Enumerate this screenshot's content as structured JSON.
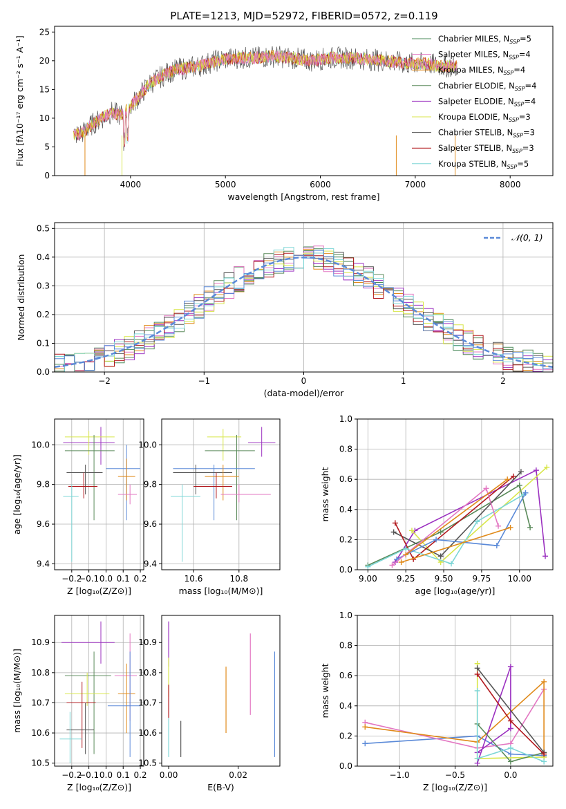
{
  "colors": {
    "Chabrier MILES": "#4a8a5a",
    "Salpeter MILES": "#e377c2",
    "Kroupa MILES": "#e08a1a",
    "Chabrier ELODIE": "#5a8a5a",
    "Salpeter ELODIE": "#9b30c0",
    "Kroupa ELODIE": "#d8e64a",
    "Chabrier STELIB": "#555555",
    "Salpeter STELIB": "#b2191e",
    "Kroupa STELIB": "#7dd6d6",
    "blue": "#5b8ad8",
    "normal": "#5b8ad8"
  },
  "chart_data": [
    {
      "type": "line",
      "title": "PLATE=1213, MJD=52972, FIBERID=0572, z=0.119",
      "xlabel": "wavelength [Angstrom, rest frame]",
      "ylabel": "Flux [fλ10⁻¹⁷ erg cm⁻² s⁻¹ A⁻¹]",
      "xlim": [
        3200,
        8450
      ],
      "ylim": [
        0,
        26
      ],
      "xticks": [
        4000,
        5000,
        6000,
        7000,
        8000
      ],
      "yticks": [
        0,
        5,
        10,
        15,
        20,
        25
      ],
      "legend_position": "right",
      "legend": [
        {
          "label": "Chabrier MILES, N",
          "sub": "SSP",
          "tail": "=5"
        },
        {
          "label": "Salpeter MILES, N",
          "sub": "SSP",
          "tail": "=4"
        },
        {
          "label": "Kroupa MILES, N",
          "sub": "SSP",
          "tail": "=4"
        },
        {
          "label": "Chabrier ELODIE, N",
          "sub": "SSP",
          "tail": "=4"
        },
        {
          "label": "Salpeter ELODIE, N",
          "sub": "SSP",
          "tail": "=4"
        },
        {
          "label": "Kroupa ELODIE, N",
          "sub": "SSP",
          "tail": "=3"
        },
        {
          "label": "Chabrier STELIB, N",
          "sub": "SSP",
          "tail": "=3"
        },
        {
          "label": "Salpeter STELIB, N",
          "sub": "SSP",
          "tail": "=3"
        },
        {
          "label": "Kroupa STELIB, N",
          "sub": "SSP",
          "tail": "=5"
        }
      ],
      "spectrum_continuum": [
        [
          3400,
          7
        ],
        [
          3500,
          7.5
        ],
        [
          3600,
          9
        ],
        [
          3700,
          10
        ],
        [
          3800,
          11
        ],
        [
          3900,
          10.5
        ],
        [
          4000,
          12
        ],
        [
          4100,
          14
        ],
        [
          4200,
          16
        ],
        [
          4300,
          17
        ],
        [
          4400,
          18
        ],
        [
          4500,
          18.5
        ],
        [
          4700,
          19
        ],
        [
          4900,
          20
        ],
        [
          5100,
          20.5
        ],
        [
          5300,
          20.5
        ],
        [
          5500,
          20.8
        ],
        [
          5700,
          20.5
        ],
        [
          5900,
          20
        ],
        [
          6100,
          20.5
        ],
        [
          6300,
          20.5
        ],
        [
          6500,
          20.2
        ],
        [
          6700,
          20
        ],
        [
          6900,
          19.5
        ],
        [
          7100,
          19.5
        ],
        [
          7300,
          19
        ],
        [
          7400,
          19
        ]
      ]
    },
    {
      "type": "histogram",
      "xlabel": "(data-model)/error",
      "ylabel": "Normed distribution",
      "xlim": [
        -2.5,
        2.5
      ],
      "ylim": [
        0,
        0.52
      ],
      "xticks": [
        -2,
        -1,
        0,
        1,
        2
      ],
      "yticks": [
        0.0,
        0.1,
        0.2,
        0.3,
        0.4,
        0.5
      ],
      "legend": "𝒩(0, 1)"
    },
    {
      "type": "scatter",
      "panel": "age-vs-Z",
      "xlabel": "Z [log₁₀(Z/Z⊙)]",
      "ylabel": "age [log₁₀(age/yr)]",
      "xlim": [
        -0.3,
        0.22
      ],
      "ylim": [
        9.37,
        10.13
      ],
      "xticks": [
        -0.2,
        -0.1,
        0.0,
        0.1,
        0.2
      ],
      "yticks": [
        9.4,
        9.6,
        9.8,
        10.0
      ],
      "points": [
        {
          "c": "Salpeter ELODIE",
          "x": -0.03,
          "y": 10.01,
          "xe": [
            -0.25,
            0.05
          ],
          "ye": [
            9.9,
            10.09
          ]
        },
        {
          "c": "Kroupa ELODIE",
          "x": -0.1,
          "y": 10.04,
          "xe": [
            -0.24,
            0.05
          ],
          "ye": [
            9.95,
            10.07
          ]
        },
        {
          "c": "Chabrier ELODIE",
          "x": -0.07,
          "y": 9.97,
          "xe": [
            -0.24,
            0.05
          ],
          "ye": [
            9.62,
            10.05
          ]
        },
        {
          "c": "Chabrier STELIB",
          "x": -0.12,
          "y": 9.86,
          "xe": [
            -0.23,
            -0.02
          ],
          "ye": [
            9.75,
            9.9
          ]
        },
        {
          "c": "Salpeter STELIB",
          "x": -0.13,
          "y": 9.79,
          "xe": [
            -0.22,
            -0.05
          ],
          "ye": [
            9.73,
            9.86
          ]
        },
        {
          "c": "Kroupa STELIB",
          "x": -0.2,
          "y": 9.74,
          "xe": [
            -0.25,
            -0.16
          ],
          "ye": [
            9.41,
            9.8
          ]
        },
        {
          "c": "blue",
          "x": 0.12,
          "y": 9.88,
          "xe": [
            0.0,
            0.2
          ],
          "ye": [
            9.62,
            10.0
          ]
        },
        {
          "c": "Kroupa MILES",
          "x": 0.12,
          "y": 9.84,
          "xe": [
            0.07,
            0.17
          ],
          "ye": [
            9.72,
            9.93
          ]
        },
        {
          "c": "Salpeter MILES",
          "x": 0.14,
          "y": 9.75,
          "xe": [
            0.07,
            0.18
          ],
          "ye": [
            9.7,
            9.8
          ]
        }
      ]
    },
    {
      "type": "scatter",
      "panel": "age-vs-mass",
      "xlabel": "mass [log₁₀(M/M⊙)]",
      "xlim": [
        10.46,
        10.98
      ],
      "ylim": [
        9.37,
        10.13
      ],
      "xticks": [
        10.6,
        10.8
      ],
      "yticks": [
        9.4,
        9.6,
        9.8,
        10.0
      ],
      "points": [
        {
          "c": "Salpeter ELODIE",
          "x": 10.9,
          "y": 10.01,
          "xe": [
            10.84,
            10.96
          ],
          "ye": [
            9.94,
            10.09
          ]
        },
        {
          "c": "Kroupa ELODIE",
          "x": 10.73,
          "y": 10.04,
          "xe": [
            10.66,
            10.81
          ],
          "ye": [
            9.92,
            10.08
          ]
        },
        {
          "c": "Chabrier ELODIE",
          "x": 10.79,
          "y": 9.97,
          "xe": [
            10.65,
            10.87
          ],
          "ye": [
            9.62,
            10.05
          ]
        },
        {
          "c": "blue",
          "x": 10.69,
          "y": 9.88,
          "xe": [
            10.51,
            10.87
          ],
          "ye": [
            9.62,
            9.9
          ]
        },
        {
          "c": "Chabrier STELIB",
          "x": 10.61,
          "y": 9.86,
          "xe": [
            10.51,
            10.77
          ],
          "ye": [
            9.75,
            9.9
          ]
        },
        {
          "c": "Kroupa MILES",
          "x": 10.73,
          "y": 9.84,
          "xe": [
            10.65,
            10.8
          ],
          "ye": [
            9.72,
            9.9
          ]
        },
        {
          "c": "Salpeter STELIB",
          "x": 10.7,
          "y": 9.79,
          "xe": [
            10.6,
            10.77
          ],
          "ye": [
            9.73,
            9.86
          ]
        },
        {
          "c": "Salpeter MILES",
          "x": 10.8,
          "y": 9.75,
          "xe": [
            10.72,
            10.94
          ],
          "ye": [
            9.71,
            9.8
          ]
        },
        {
          "c": "Kroupa STELIB",
          "x": 10.55,
          "y": 9.74,
          "xe": [
            10.5,
            10.63
          ],
          "ye": [
            9.41,
            9.8
          ]
        }
      ]
    },
    {
      "type": "line",
      "panel": "weight-vs-age",
      "xlabel": "age [log₁₀(age/yr)]",
      "ylabel": "mass weight",
      "xlim": [
        8.93,
        10.22
      ],
      "ylim": [
        0,
        1.0
      ],
      "xticks": [
        9.0,
        9.25,
        9.5,
        9.75,
        10.0
      ],
      "yticks": [
        0.0,
        0.2,
        0.4,
        0.6,
        0.8,
        1.0
      ],
      "series": [
        {
          "c": "Salpeter ELODIE",
          "x": [
            9.18,
            9.31,
            10.11,
            10.17
          ],
          "y": [
            0.05,
            0.26,
            0.66,
            0.09
          ]
        },
        {
          "c": "Kroupa ELODIE",
          "x": [
            9.29,
            9.48,
            10.18
          ],
          "y": [
            0.26,
            0.05,
            0.68
          ]
        },
        {
          "c": "Chabrier ELODIE",
          "x": [
            9.0,
            9.48,
            10.0,
            10.07
          ],
          "y": [
            0.03,
            0.25,
            0.56,
            0.28
          ]
        },
        {
          "c": "Chabrier STELIB",
          "x": [
            9.17,
            9.48,
            10.01
          ],
          "y": [
            0.25,
            0.09,
            0.65
          ]
        },
        {
          "c": "Salpeter STELIB",
          "x": [
            9.18,
            9.3,
            9.96
          ],
          "y": [
            0.31,
            0.07,
            0.62
          ]
        },
        {
          "c": "Kroupa STELIB",
          "x": [
            9.0,
            9.25,
            9.55,
            9.72,
            10.03
          ],
          "y": [
            0.02,
            0.14,
            0.04,
            0.32,
            0.5
          ]
        },
        {
          "c": "blue",
          "x": [
            9.19,
            9.45,
            9.85,
            10.04
          ],
          "y": [
            0.07,
            0.2,
            0.16,
            0.51
          ]
        },
        {
          "c": "Kroupa MILES",
          "x": [
            9.22,
            9.94
          ],
          "y": [
            0.05,
            0.28
          ]
        },
        {
          "c": "Salpeter MILES",
          "x": [
            9.16,
            9.78,
            9.86
          ],
          "y": [
            0.03,
            0.54,
            0.29
          ]
        },
        {
          "c": "Kroupa MILES",
          "x": [
            9.25,
            9.92
          ],
          "y": [
            0.1,
            0.6
          ]
        }
      ]
    },
    {
      "type": "scatter",
      "panel": "mass-vs-Z",
      "xlabel": "Z [log₁₀(Z/Z⊙)]",
      "ylabel": "mass [log₁₀(M/M⊙)]",
      "xlim": [
        -0.3,
        0.22
      ],
      "ylim": [
        10.49,
        10.99
      ],
      "xticks": [
        -0.2,
        -0.1,
        0.0,
        0.1,
        0.2
      ],
      "yticks": [
        10.5,
        10.6,
        10.7,
        10.8,
        10.9
      ],
      "points": [
        {
          "c": "Salpeter ELODIE",
          "x": -0.03,
          "y": 10.9,
          "xe": [
            -0.26,
            0.05
          ],
          "ye": [
            10.83,
            10.97
          ]
        },
        {
          "c": "Salpeter MILES",
          "x": 0.14,
          "y": 10.79,
          "xe": [
            0.05,
            0.18
          ],
          "ye": [
            10.64,
            10.93
          ]
        },
        {
          "c": "Chabrier ELODIE",
          "x": -0.07,
          "y": 10.79,
          "xe": [
            -0.24,
            0.03
          ],
          "ye": [
            10.53,
            10.87
          ]
        },
        {
          "c": "Kroupa ELODIE",
          "x": -0.11,
          "y": 10.73,
          "xe": [
            -0.24,
            0.02
          ],
          "ye": [
            10.69,
            10.8
          ]
        },
        {
          "c": "Kroupa MILES",
          "x": 0.12,
          "y": 10.73,
          "xe": [
            0.07,
            0.17
          ],
          "ye": [
            10.6,
            10.83
          ]
        },
        {
          "c": "Salpeter STELIB",
          "x": -0.14,
          "y": 10.7,
          "xe": [
            -0.23,
            -0.06
          ],
          "ye": [
            10.55,
            10.77
          ]
        },
        {
          "c": "blue",
          "x": 0.14,
          "y": 10.69,
          "xe": [
            0.01,
            0.2
          ],
          "ye": [
            10.52,
            10.87
          ]
        },
        {
          "c": "Chabrier STELIB",
          "x": -0.12,
          "y": 10.61,
          "xe": [
            -0.23,
            -0.07
          ],
          "ye": [
            10.53,
            10.7
          ]
        },
        {
          "c": "Kroupa STELIB",
          "x": -0.21,
          "y": 10.58,
          "xe": [
            -0.27,
            -0.14
          ],
          "ye": [
            10.5,
            10.67
          ]
        }
      ]
    },
    {
      "type": "scatter",
      "panel": "mass-vs-EBV",
      "xlabel": "E(B-V)",
      "xlim": [
        -0.002,
        0.032
      ],
      "ylim": [
        10.49,
        10.99
      ],
      "xticks": [
        0.0,
        0.02
      ],
      "yticks": [
        10.5,
        10.6,
        10.7,
        10.8,
        10.9
      ],
      "bars": [
        {
          "c": "Salpeter ELODIE",
          "x": 0.0,
          "ye": [
            10.82,
            10.97
          ]
        },
        {
          "c": "Kroupa ELODIE",
          "x": 0.0,
          "ye": [
            10.72,
            10.85
          ]
        },
        {
          "c": "Salpeter STELIB",
          "x": 0.0,
          "ye": [
            10.65,
            10.76
          ]
        },
        {
          "c": "Kroupa STELIB",
          "x": 0.0,
          "ye": [
            10.52,
            10.65
          ]
        },
        {
          "c": "Chabrier STELIB",
          "x": 0.0035,
          "ye": [
            10.52,
            10.64
          ]
        },
        {
          "c": "Kroupa MILES",
          "x": 0.0165,
          "ye": [
            10.6,
            10.82
          ]
        },
        {
          "c": "Salpeter MILES",
          "x": 0.0235,
          "ye": [
            10.66,
            10.93
          ]
        },
        {
          "c": "blue",
          "x": 0.0305,
          "ye": [
            10.52,
            10.87
          ]
        }
      ]
    },
    {
      "type": "line",
      "panel": "weight-vs-Z",
      "xlabel": "Z [log₁₀(Z/Z⊙)]",
      "ylabel": "mass weight",
      "xlim": [
        -1.38,
        0.38
      ],
      "ylim": [
        0,
        1.0
      ],
      "xticks": [
        -1.0,
        -0.5,
        0.0
      ],
      "yticks": [
        0.0,
        0.2,
        0.4,
        0.6,
        0.8,
        1.0
      ],
      "series": [
        {
          "c": "blue",
          "x": [
            -1.31,
            -0.3,
            0.0,
            0.3
          ],
          "y": [
            0.15,
            0.2,
            0.08,
            0.07
          ]
        },
        {
          "c": "Salpeter MILES",
          "x": [
            -1.31,
            -0.3,
            0.0,
            0.3
          ],
          "y": [
            0.29,
            0.12,
            0.15,
            0.51
          ]
        },
        {
          "c": "Kroupa MILES",
          "x": [
            -1.31,
            -0.3,
            0.3,
            0.3
          ],
          "y": [
            0.26,
            0.16,
            0.56,
            0.06
          ]
        },
        {
          "c": "Salpeter ELODIE",
          "x": [
            -0.3,
            0.0,
            0.0,
            -0.3
          ],
          "y": [
            0.09,
            0.25,
            0.66,
            0.02
          ]
        },
        {
          "c": "Kroupa ELODIE",
          "x": [
            -0.3,
            -0.3,
            0.3
          ],
          "y": [
            0.68,
            0.05,
            0.06
          ]
        },
        {
          "c": "Chabrier ELODIE",
          "x": [
            -0.3,
            0.0,
            0.3
          ],
          "y": [
            0.28,
            0.03,
            0.09
          ]
        },
        {
          "c": "Chabrier STELIB",
          "x": [
            -0.3,
            0.3
          ],
          "y": [
            0.65,
            0.09
          ]
        },
        {
          "c": "Salpeter STELIB",
          "x": [
            -0.3,
            0.0,
            0.3
          ],
          "y": [
            0.61,
            0.3,
            0.08
          ]
        },
        {
          "c": "Kroupa STELIB",
          "x": [
            -0.3,
            -0.3,
            0.0,
            0.3
          ],
          "y": [
            0.5,
            0.05,
            0.12,
            0.03
          ]
        }
      ]
    }
  ]
}
